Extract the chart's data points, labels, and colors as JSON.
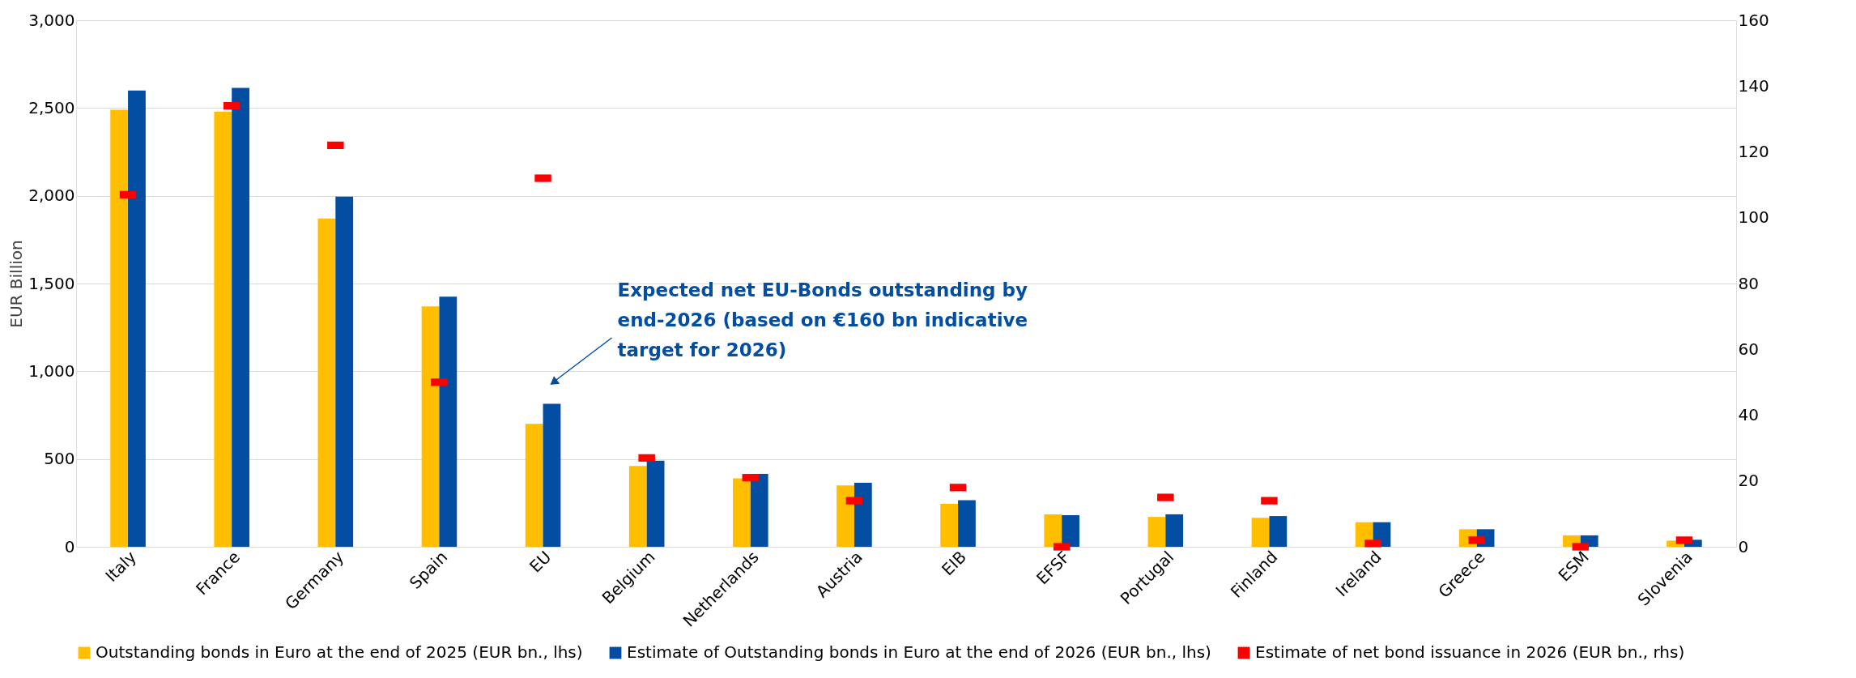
{
  "chart_data": {
    "type": "bar",
    "ylabel": "EUR Billion",
    "categories": [
      "Italy",
      "France",
      "Germany",
      "Spain",
      "EU",
      "Belgium",
      "Netherlands",
      "Austria",
      "EIB",
      "EFSF",
      "Portugal",
      "Finland",
      "Ireland",
      "Greece",
      "ESM",
      "Slovenia"
    ],
    "series": [
      {
        "name": "Outstanding bonds in Euro at the end of 2025 (EUR bn., lhs)",
        "color": "#ffbe00",
        "values": [
          2490,
          2480,
          1870,
          1370,
          700,
          460,
          390,
          350,
          245,
          185,
          170,
          165,
          140,
          100,
          65,
          35
        ]
      },
      {
        "name": "Estimate of Outstanding bonds in Euro at the end of 2026 (EUR bn., lhs)",
        "color": "#034ea2",
        "values": [
          2600,
          2615,
          1995,
          1425,
          815,
          490,
          415,
          365,
          265,
          180,
          185,
          175,
          140,
          100,
          65,
          40
        ]
      },
      {
        "name": "Estimate of net bond issuance in 2026 (EUR bn., rhs)",
        "color": "#ff0000",
        "type": "scatter",
        "axis": "y2",
        "values": [
          107,
          134,
          122,
          50,
          112,
          27,
          21,
          14,
          18,
          0,
          15,
          14,
          1,
          2,
          0,
          2
        ]
      }
    ],
    "ylim": [
      0,
      3000
    ],
    "yticks": [
      0,
      500,
      {
        "value": 1000,
        "label": "1,000"
      },
      {
        "value": 1500,
        "label": "1,500"
      },
      {
        "value": 2000,
        "label": "2,000"
      },
      {
        "value": 2500,
        "label": "2,500"
      },
      {
        "value": 3000,
        "label": "3,000"
      }
    ],
    "y2lim": [
      0,
      160
    ],
    "y2ticks": [
      0,
      20,
      40,
      60,
      80,
      100,
      120,
      140,
      160
    ],
    "grid": "y",
    "legend": "bottom",
    "annotations": [
      "Expected net EU-Bonds outstanding by\nend-2026 (based on €160 bn indicative\ntarget for 2026)"
    ]
  }
}
